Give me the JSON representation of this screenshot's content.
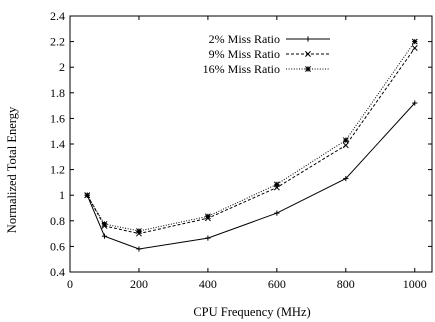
{
  "chart_data": {
    "type": "line",
    "xlabel": "CPU Frequency (MHz)",
    "ylabel": "Normalized Total Energy",
    "xlim": [
      0,
      1050
    ],
    "ylim": [
      0.4,
      2.4
    ],
    "xticks": [
      0,
      200,
      400,
      600,
      800,
      1000
    ],
    "yticks": [
      0.4,
      0.6,
      0.8,
      1.0,
      1.2,
      1.4,
      1.6,
      1.8,
      2.0,
      2.2,
      2.4
    ],
    "xtick_labels": [
      "0",
      "200",
      "400",
      "600",
      "800",
      "1000"
    ],
    "ytick_labels": [
      "0.4",
      "0.6",
      "0.8",
      "1",
      "1.2",
      "1.4",
      "1.6",
      "1.8",
      "2",
      "2.2",
      "2.4"
    ],
    "legend_position": "top-right",
    "grid": false,
    "series": [
      {
        "name": "2% Miss Ratio",
        "line_style": "solid",
        "marker": "plus",
        "x": [
          50,
          100,
          200,
          400,
          600,
          800,
          1000
        ],
        "y": [
          1.0,
          0.68,
          0.58,
          0.665,
          0.86,
          1.13,
          1.72
        ]
      },
      {
        "name": "9% Miss Ratio",
        "line_style": "dashed",
        "marker": "cross",
        "x": [
          50,
          100,
          200,
          400,
          600,
          800,
          1000
        ],
        "y": [
          1.0,
          0.76,
          0.7,
          0.82,
          1.06,
          1.39,
          2.15
        ]
      },
      {
        "name": "16% Miss Ratio",
        "line_style": "dotted",
        "marker": "asterisk",
        "x": [
          50,
          100,
          200,
          400,
          600,
          800,
          1000
        ],
        "y": [
          1.0,
          0.775,
          0.72,
          0.835,
          1.085,
          1.43,
          2.2
        ]
      }
    ]
  }
}
